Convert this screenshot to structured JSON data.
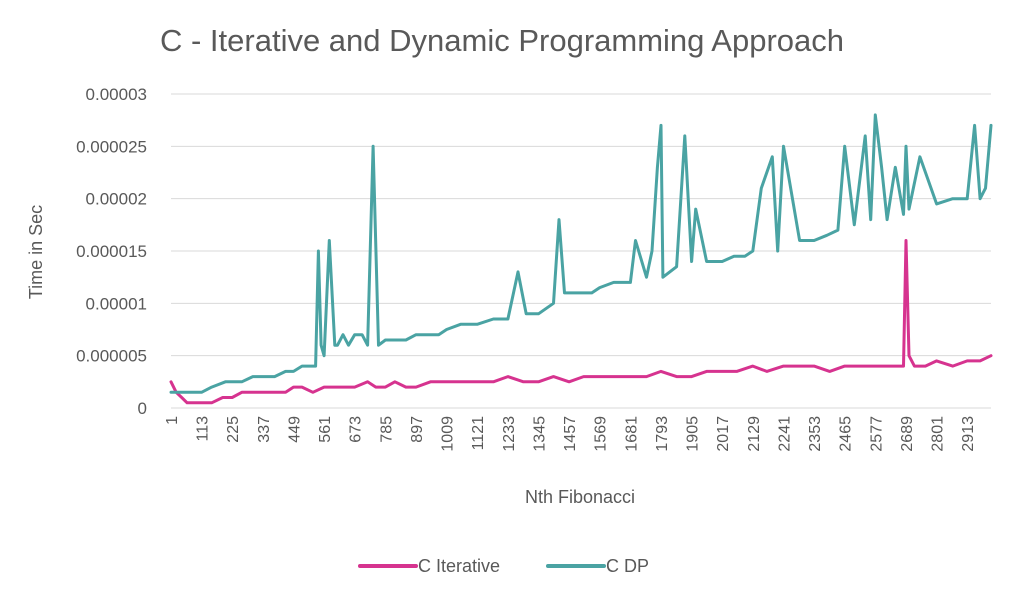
{
  "chart_data": {
    "type": "line",
    "title": "C - Iterative and Dynamic Programming Approach",
    "xlabel": "Nth Fibonacci",
    "ylabel": "Time in Sec",
    "ylim": [
      0,
      3e-05
    ],
    "yticks": [
      "0",
      "0.000005",
      "0.00001",
      "0.000015",
      "0.00002",
      "0.000025",
      "0.00003"
    ],
    "ytick_values": [
      0,
      5e-06,
      1e-05,
      1.5e-05,
      2e-05,
      2.5e-05,
      3e-05
    ],
    "xlim": [
      1,
      3000
    ],
    "xticks": [
      "1",
      "113",
      "225",
      "337",
      "449",
      "561",
      "673",
      "785",
      "897",
      "1009",
      "1121",
      "1233",
      "1345",
      "1457",
      "1569",
      "1681",
      "1793",
      "1905",
      "2017",
      "2129",
      "2241",
      "2353",
      "2465",
      "2577",
      "2689",
      "2801",
      "2913"
    ],
    "grid": true,
    "legend_position": "bottom",
    "series": [
      {
        "name": "C Iterative",
        "color": "#d6338f",
        "x": [
          1,
          20,
          40,
          60,
          80,
          113,
          150,
          190,
          225,
          260,
          300,
          337,
          380,
          420,
          449,
          480,
          520,
          561,
          600,
          640,
          673,
          720,
          750,
          785,
          820,
          860,
          897,
          950,
          1009,
          1060,
          1121,
          1180,
          1233,
          1290,
          1345,
          1400,
          1457,
          1510,
          1569,
          1620,
          1681,
          1740,
          1793,
          1850,
          1905,
          1960,
          2017,
          2070,
          2129,
          2180,
          2241,
          2300,
          2353,
          2410,
          2465,
          2520,
          2577,
          2630,
          2680,
          2689,
          2700,
          2720,
          2760,
          2801,
          2860,
          2913,
          2960,
          3000
        ],
        "y": [
          2.5e-06,
          1.5e-06,
          1e-06,
          5e-07,
          5e-07,
          5e-07,
          5e-07,
          1e-06,
          1e-06,
          1.5e-06,
          1.5e-06,
          1.5e-06,
          1.5e-06,
          1.5e-06,
          2e-06,
          2e-06,
          1.5e-06,
          2e-06,
          2e-06,
          2e-06,
          2e-06,
          2.5e-06,
          2e-06,
          2e-06,
          2.5e-06,
          2e-06,
          2e-06,
          2.5e-06,
          2.5e-06,
          2.5e-06,
          2.5e-06,
          2.5e-06,
          3e-06,
          2.5e-06,
          2.5e-06,
          3e-06,
          2.5e-06,
          3e-06,
          3e-06,
          3e-06,
          3e-06,
          3e-06,
          3.5e-06,
          3e-06,
          3e-06,
          3.5e-06,
          3.5e-06,
          3.5e-06,
          4e-06,
          3.5e-06,
          4e-06,
          4e-06,
          4e-06,
          3.5e-06,
          4e-06,
          4e-06,
          4e-06,
          4e-06,
          4e-06,
          1.6e-05,
          5e-06,
          4e-06,
          4e-06,
          4.5e-06,
          4e-06,
          4.5e-06,
          4.5e-06,
          5e-06
        ]
      },
      {
        "name": "C DP",
        "color": "#4aa3a3",
        "x": [
          1,
          30,
          60,
          113,
          150,
          200,
          225,
          260,
          300,
          337,
          380,
          420,
          449,
          480,
          530,
          540,
          550,
          561,
          580,
          600,
          610,
          630,
          650,
          673,
          700,
          720,
          740,
          760,
          785,
          820,
          860,
          897,
          940,
          980,
          1009,
          1060,
          1121,
          1180,
          1233,
          1270,
          1300,
          1345,
          1400,
          1420,
          1440,
          1457,
          1500,
          1540,
          1569,
          1620,
          1681,
          1700,
          1740,
          1760,
          1780,
          1793,
          1800,
          1850,
          1880,
          1905,
          1920,
          1960,
          2017,
          2060,
          2100,
          2129,
          2160,
          2200,
          2220,
          2241,
          2300,
          2353,
          2400,
          2440,
          2465,
          2500,
          2540,
          2560,
          2577,
          2600,
          2620,
          2650,
          2680,
          2689,
          2700,
          2740,
          2801,
          2860,
          2913,
          2940,
          2960,
          2980,
          3000
        ],
        "y": [
          1.5e-06,
          1.5e-06,
          1.5e-06,
          1.5e-06,
          2e-06,
          2.5e-06,
          2.5e-06,
          2.5e-06,
          3e-06,
          3e-06,
          3e-06,
          3.5e-06,
          3.5e-06,
          4e-06,
          4e-06,
          1.5e-05,
          6e-06,
          5e-06,
          1.6e-05,
          6e-06,
          6e-06,
          7e-06,
          6e-06,
          7e-06,
          7e-06,
          6e-06,
          2.5e-05,
          6e-06,
          6.5e-06,
          6.5e-06,
          6.5e-06,
          7e-06,
          7e-06,
          7e-06,
          7.5e-06,
          8e-06,
          8e-06,
          8.5e-06,
          8.5e-06,
          1.3e-05,
          9e-06,
          9e-06,
          1e-05,
          1.8e-05,
          1.1e-05,
          1.1e-05,
          1.1e-05,
          1.1e-05,
          1.15e-05,
          1.2e-05,
          1.2e-05,
          1.6e-05,
          1.25e-05,
          1.5e-05,
          2.3e-05,
          2.7e-05,
          1.25e-05,
          1.35e-05,
          2.6e-05,
          1.4e-05,
          1.9e-05,
          1.4e-05,
          1.4e-05,
          1.45e-05,
          1.45e-05,
          1.5e-05,
          2.1e-05,
          2.4e-05,
          1.5e-05,
          2.5e-05,
          1.6e-05,
          1.6e-05,
          1.65e-05,
          1.7e-05,
          2.5e-05,
          1.75e-05,
          2.6e-05,
          1.8e-05,
          2.8e-05,
          2.3e-05,
          1.8e-05,
          2.3e-05,
          1.85e-05,
          2.5e-05,
          1.9e-05,
          2.4e-05,
          1.95e-05,
          2e-05,
          2e-05,
          2.7e-05,
          2e-05,
          2.1e-05,
          2.7e-05
        ]
      }
    ]
  }
}
